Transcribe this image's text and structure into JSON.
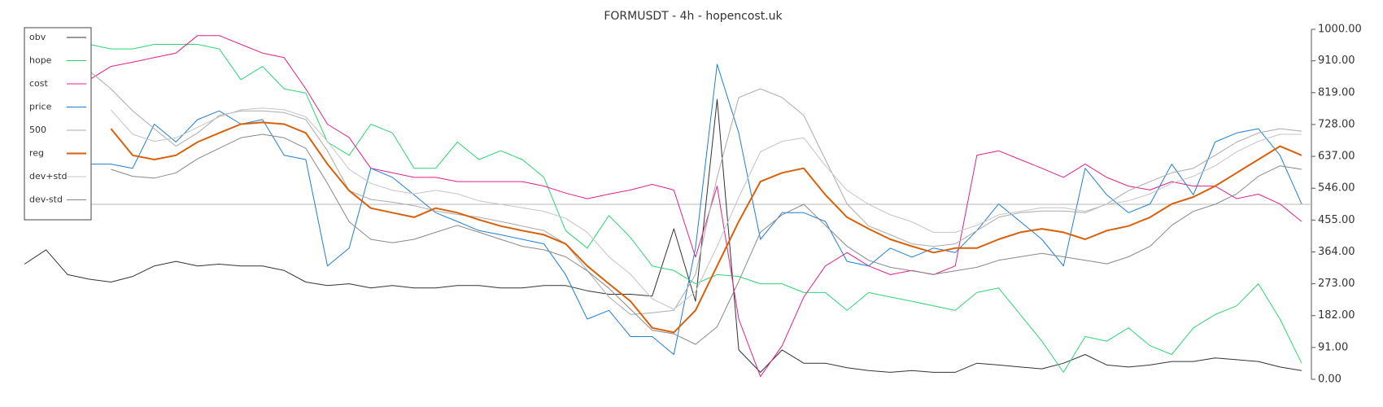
{
  "chart_data": {
    "type": "line",
    "title": "FORMUSDT - 4h - hopencost.uk",
    "ylim": [
      0,
      1000
    ],
    "yticks": [
      {
        "value": 0,
        "label": "0.00"
      },
      {
        "value": 91,
        "label": "91.00"
      },
      {
        "value": 182,
        "label": "182.00"
      },
      {
        "value": 273,
        "label": "273.00"
      },
      {
        "value": 364,
        "label": "364.00"
      },
      {
        "value": 455,
        "label": "455.00"
      },
      {
        "value": 546,
        "label": "546.00"
      },
      {
        "value": 637,
        "label": "637.00"
      },
      {
        "value": 728,
        "label": "728.00"
      },
      {
        "value": 819,
        "label": "819.00"
      },
      {
        "value": 910,
        "label": "910.00"
      },
      {
        "value": 1000,
        "label": "1000.00"
      }
    ],
    "reference_line": 500,
    "legend": "top-left",
    "series": [
      {
        "name": "obv",
        "color": "#333333",
        "width": 1,
        "values": [
          329,
          370,
          299,
          286,
          278,
          294,
          324,
          337,
          324,
          329,
          324,
          324,
          311,
          278,
          268,
          273,
          261,
          268,
          261,
          261,
          268,
          268,
          261,
          261,
          268,
          268,
          253,
          243,
          243,
          238,
          430,
          223,
          800,
          84,
          20,
          84,
          46,
          46,
          33,
          25,
          20,
          25,
          20,
          20,
          46,
          41,
          35,
          30,
          46,
          71,
          41,
          35,
          41,
          51,
          51,
          61,
          56,
          51,
          35,
          25
        ]
      },
      {
        "name": "hope",
        "color": "#2ed573",
        "width": 1,
        "values": [
          null,
          null,
          null,
          957,
          944,
          944,
          957,
          957,
          957,
          944,
          856,
          894,
          830,
          818,
          678,
          640,
          729,
          704,
          603,
          603,
          678,
          628,
          653,
          628,
          577,
          425,
          375,
          468,
          405,
          324,
          311,
          273,
          299,
          294,
          273,
          273,
          248,
          248,
          197,
          248,
          235,
          223,
          210,
          197,
          248,
          261,
          185,
          109,
          20,
          122,
          109,
          147,
          96,
          71,
          147,
          185,
          210,
          273,
          172,
          46
        ]
      },
      {
        "name": "cost",
        "color": "#e0218a",
        "width": 1,
        "values": [
          null,
          null,
          null,
          856,
          894,
          906,
          919,
          932,
          982,
          982,
          957,
          932,
          919,
          830,
          729,
          691,
          603,
          590,
          577,
          577,
          565,
          565,
          565,
          565,
          552,
          532,
          516,
          529,
          541,
          557,
          541,
          349,
          552,
          172,
          8,
          96,
          235,
          324,
          362,
          324,
          299,
          311,
          299,
          324,
          640,
          653,
          628,
          603,
          577,
          615,
          577,
          552,
          541,
          565,
          552,
          552,
          516,
          529,
          501,
          451
        ]
      },
      {
        "name": "price",
        "color": "#1f7fd4",
        "width": 1,
        "values": [
          null,
          null,
          null,
          615,
          615,
          603,
          729,
          678,
          742,
          767,
          729,
          742,
          640,
          628,
          324,
          375,
          603,
          577,
          527,
          476,
          451,
          425,
          413,
          400,
          387,
          299,
          172,
          197,
          122,
          122,
          71,
          375,
          900,
          704,
          400,
          476,
          476,
          451,
          337,
          324,
          375,
          349,
          375,
          362,
          425,
          501,
          451,
          400,
          324,
          603,
          527,
          476,
          501,
          615,
          527,
          678,
          704,
          716,
          640,
          501
        ]
      },
      {
        "name": "500",
        "color": "#aaaaaa",
        "width": 1,
        "values": [
          null,
          null,
          null,
          881,
          830,
          767,
          716,
          666,
          704,
          754,
          767,
          767,
          762,
          742,
          653,
          539,
          514,
          506,
          496,
          481,
          471,
          463,
          451,
          438,
          425,
          387,
          311,
          235,
          185,
          190,
          197,
          299,
          577,
          805,
          830,
          805,
          754,
          628,
          501,
          438,
          413,
          387,
          380,
          387,
          425,
          463,
          476,
          481,
          481,
          476,
          501,
          539,
          565,
          590,
          603,
          640,
          678,
          704,
          716,
          709
        ]
      },
      {
        "name": "reg",
        "color": "#d9600a",
        "width": 2,
        "values": [
          null,
          null,
          null,
          null,
          716,
          640,
          628,
          640,
          678,
          704,
          729,
          734,
          729,
          704,
          615,
          539,
          489,
          476,
          463,
          489,
          476,
          456,
          438,
          425,
          413,
          387,
          324,
          273,
          223,
          147,
          134,
          197,
          324,
          451,
          565,
          590,
          603,
          527,
          463,
          430,
          400,
          380,
          362,
          375,
          375,
          400,
          420,
          430,
          420,
          400,
          425,
          438,
          463,
          501,
          521,
          552,
          590,
          628,
          666,
          640
        ]
      },
      {
        "name": "dev+std",
        "color": "#c4c4c4",
        "width": 1,
        "values": [
          null,
          null,
          null,
          null,
          770,
          700,
          680,
          690,
          720,
          750,
          770,
          775,
          770,
          750,
          680,
          600,
          560,
          540,
          530,
          540,
          530,
          510,
          500,
          490,
          480,
          460,
          420,
          350,
          300,
          230,
          200,
          250,
          380,
          520,
          650,
          680,
          690,
          610,
          540,
          500,
          470,
          450,
          420,
          420,
          440,
          470,
          480,
          490,
          490,
          480,
          500,
          510,
          530,
          560,
          580,
          610,
          650,
          680,
          700,
          700
        ]
      },
      {
        "name": "dev-std",
        "color": "#888888",
        "width": 1,
        "values": [
          null,
          null,
          null,
          null,
          600,
          580,
          575,
          590,
          630,
          660,
          690,
          700,
          690,
          660,
          560,
          450,
          400,
          390,
          400,
          420,
          440,
          420,
          400,
          380,
          370,
          350,
          310,
          260,
          200,
          140,
          130,
          100,
          150,
          280,
          420,
          470,
          500,
          440,
          380,
          340,
          320,
          310,
          300,
          310,
          320,
          340,
          350,
          360,
          350,
          340,
          330,
          350,
          380,
          440,
          480,
          500,
          530,
          580,
          610,
          600
        ]
      }
    ]
  }
}
